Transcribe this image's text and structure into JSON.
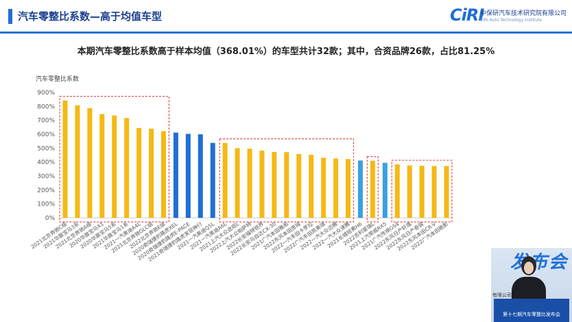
{
  "header": {
    "title": "汽车零整比系数—高于均值车型"
  },
  "logo": {
    "mark": "CiRI",
    "cn_name": "中保研汽车技术研究院有限公司",
    "en_name": "CIRI Auto Technology Institute"
  },
  "overlay": {
    "text": "发布会",
    "podium_text": "第十七期汽车零整比发布会",
    "side_label": "有限公司"
  },
  "chart_data": {
    "type": "bar",
    "title": "本期汽车零整比系数高于样本均值（368.01%）的车型共计32款；其中，合资品牌26款，占比81.25%",
    "ylabel": "汽车零整比系数",
    "xlabel": "",
    "ylim": [
      0,
      900
    ],
    "yticks": [
      "0%",
      "100%",
      "200%",
      "300%",
      "400%",
      "500%",
      "600%",
      "700%",
      "800%",
      "900%"
    ],
    "grid": false,
    "categories": [
      "2021北京奔驰C级",
      "2021华晨宝马3系",
      "2021北京奔驰A级",
      "2020华晨宝马X1",
      "2020华晨宝马5系",
      "2021华晨宝马1系",
      "2021一汽奥迪A4L",
      "2021北京奔驰GLC级",
      "2022北京奔驰E级",
      "2020奇瑞捷豹路虎XEL",
      "2020奇瑞捷豹路虎E-PACE",
      "2021奇瑞捷豹路虎发现神行",
      "2021一汽奥迪Q5L",
      "2021一汽奥迪A6L",
      "2021上汽大众途观L",
      "2022上汽大众帕萨特",
      "2022长安福特锐界",
      "2022长安马自达CX-30",
      "2021广汽本田雅阁",
      "2022东风本田思域",
      "2022一汽丰田卡罗拉",
      "2022广汽丰田凯美瑞",
      "2022一汽大众迈腾",
      "2022一汽大众速腾",
      "2021长城哈弗H6",
      "2022吉利星瑞L",
      "2021上汽荣威RX5",
      "2021广汽传祺GS4",
      "2022东风日产轩逸",
      "2022东风日产奇骏",
      "2022东风本田CR-V",
      "2022广汽本田皓影"
    ],
    "values": [
      843,
      808,
      787,
      745,
      735,
      717,
      645,
      640,
      622,
      612,
      603,
      600,
      538,
      538,
      500,
      497,
      483,
      473,
      472,
      458,
      453,
      432,
      426,
      422,
      412,
      410,
      395,
      384,
      376,
      374,
      372,
      372
    ],
    "colors": [
      "#f5b915",
      "#f5b915",
      "#f5b915",
      "#f5b915",
      "#f5b915",
      "#f5b915",
      "#f5b915",
      "#f5b915",
      "#f5b915",
      "#1f6fd6",
      "#1f6fd6",
      "#1f6fd6",
      "#1f6fd6",
      "#f5b915",
      "#f5b915",
      "#f5b915",
      "#f5b915",
      "#f5b915",
      "#f5b915",
      "#f5b915",
      "#f5b915",
      "#f5b915",
      "#f5b915",
      "#f5b915",
      "#3aa0e0",
      "#f5b915",
      "#3aa0e0",
      "#f5b915",
      "#f5b915",
      "#f5b915",
      "#f5b915",
      "#f5b915"
    ],
    "highlight_groups": [
      [
        0,
        8
      ],
      [
        13,
        23
      ],
      [
        25,
        25
      ],
      [
        27,
        31
      ]
    ],
    "highlight_color": "#d9534f"
  }
}
